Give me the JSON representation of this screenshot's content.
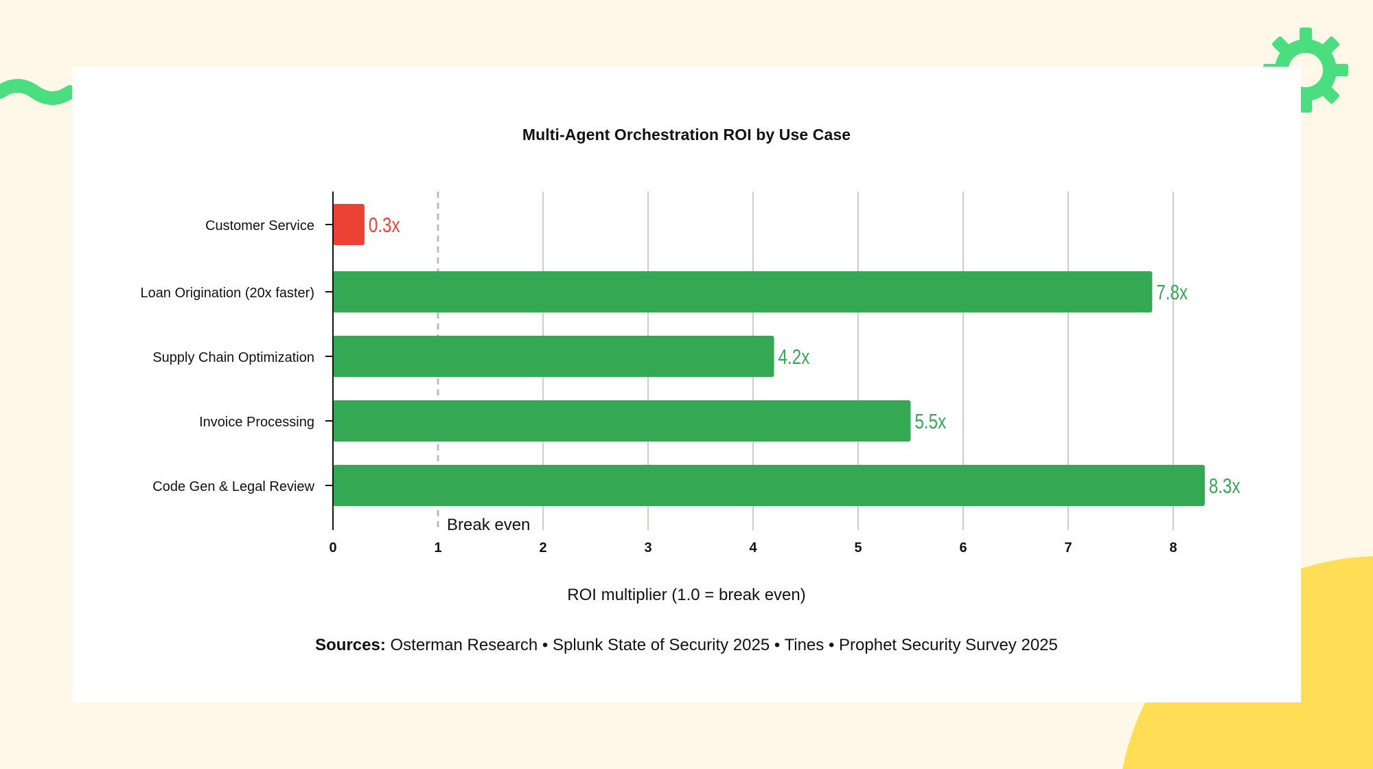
{
  "theme": {
    "page_background": "#FFF8E8",
    "card_background": "#FFFFFF",
    "positive_color": "#34A853",
    "negative_color": "#EA4335",
    "deco_green": "#4ADE80",
    "deco_yellow": "#FFDD55",
    "grid_color": "#CCCCCC",
    "reference_line_color": "#BBBBBB"
  },
  "chart_data": {
    "type": "bar",
    "orientation": "horizontal",
    "title": "Multi-Agent Orchestration ROI by Use Case",
    "xlabel": "ROI multiplier (1.0 = break even)",
    "ylabel": "",
    "xlim": [
      0,
      8.5
    ],
    "xticks": [
      0,
      1,
      2,
      3,
      4,
      5,
      6,
      7,
      8
    ],
    "grid": "vertical",
    "categories": [
      "Customer Service",
      "Loan Origination (20x faster)",
      "Supply Chain Optimization",
      "Invoice Processing",
      "Code Gen & Legal Review"
    ],
    "values": [
      0.3,
      7.8,
      4.2,
      5.5,
      8.3
    ],
    "value_labels": [
      "0.3x",
      "7.8x",
      "4.2x",
      "5.5x",
      "8.3x"
    ],
    "bar_colors": [
      "#EA4335",
      "#34A853",
      "#34A853",
      "#34A853",
      "#34A853"
    ],
    "reference_line": {
      "x": 1,
      "label": "Break even"
    }
  },
  "sources": {
    "label": "Sources:",
    "text": "Osterman Research • Splunk State of Security 2025 • Tines • Prophet Security Survey 2025"
  }
}
